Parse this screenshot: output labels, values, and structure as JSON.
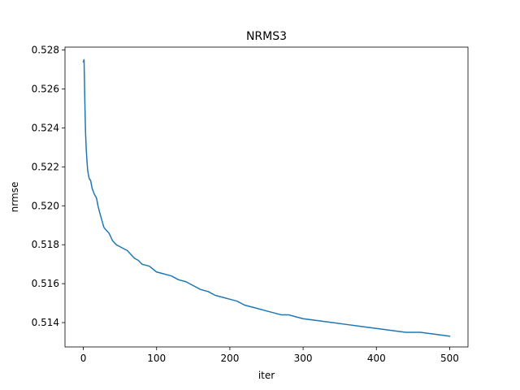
{
  "chart_data": {
    "type": "line",
    "title": "NRMS3",
    "xlabel": "iter",
    "ylabel": "nrmse",
    "xlim": [
      -25,
      525
    ],
    "ylim": [
      0.51275,
      0.52815
    ],
    "xticks": [
      0,
      100,
      200,
      300,
      400,
      500
    ],
    "xtick_labels": [
      "0",
      "100",
      "200",
      "300",
      "400",
      "500"
    ],
    "yticks": [
      0.514,
      0.516,
      0.518,
      0.52,
      0.522,
      0.524,
      0.526,
      0.528
    ],
    "ytick_labels": [
      "0.514",
      "0.516",
      "0.518",
      "0.520",
      "0.522",
      "0.524",
      "0.526",
      "0.528"
    ],
    "grid": false,
    "series": [
      {
        "name": "nrmse",
        "color": "#1f77b4",
        "x": [
          0,
          1,
          2,
          3,
          4,
          5,
          6,
          8,
          10,
          12,
          15,
          18,
          20,
          22,
          25,
          28,
          30,
          35,
          40,
          45,
          50,
          60,
          70,
          75,
          80,
          90,
          100,
          110,
          120,
          130,
          140,
          150,
          160,
          170,
          180,
          190,
          200,
          210,
          220,
          230,
          240,
          250,
          260,
          270,
          280,
          290,
          300,
          320,
          340,
          360,
          380,
          400,
          420,
          440,
          460,
          480,
          500
        ],
        "y": [
          0.5274,
          0.5275,
          0.5255,
          0.5238,
          0.5229,
          0.5223,
          0.5218,
          0.5214,
          0.5213,
          0.5209,
          0.5206,
          0.5204,
          0.52,
          0.5197,
          0.5193,
          0.5189,
          0.5188,
          0.5186,
          0.5182,
          0.518,
          0.5179,
          0.5177,
          0.5173,
          0.5172,
          0.517,
          0.5169,
          0.5166,
          0.5165,
          0.5164,
          0.5162,
          0.5161,
          0.5159,
          0.5157,
          0.5156,
          0.5154,
          0.5153,
          0.5152,
          0.5151,
          0.5149,
          0.5148,
          0.5147,
          0.5146,
          0.5145,
          0.5144,
          0.5144,
          0.5143,
          0.5142,
          0.5141,
          0.514,
          0.5139,
          0.5138,
          0.5137,
          0.5136,
          0.5135,
          0.5135,
          0.5134,
          0.5133
        ]
      }
    ]
  }
}
